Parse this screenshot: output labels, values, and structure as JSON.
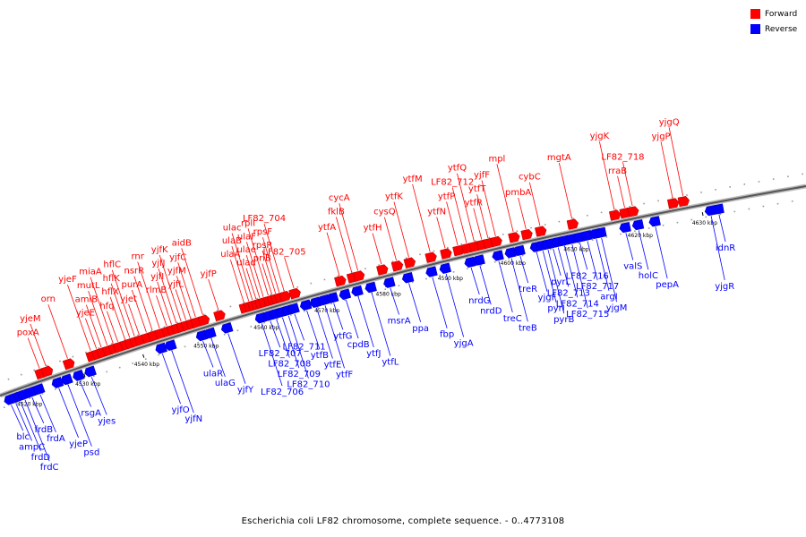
{
  "legend": {
    "forward": {
      "label": "Forward",
      "color": "#ff0000"
    },
    "reverse": {
      "label": "Reverse",
      "color": "#0000ff"
    }
  },
  "caption": "Escherichia coli LF82 chromosome, complete sequence. - 0..4773108",
  "axis": {
    "start_kbp": 4516,
    "end_kbp": 4646,
    "tick_labels": [
      "4520 kbp",
      "4530 kbp",
      "4540 kbp",
      "4550 kbp",
      "4560 kbp",
      "4570 kbp",
      "4580 kbp",
      "4590 kbp",
      "4600 kbp",
      "4610 kbp",
      "4620 kbp",
      "4630 kbp"
    ]
  },
  "forward_genes": [
    {
      "name": "poxA",
      "kbp": 4523.5
    },
    {
      "name": "yjeM",
      "kbp": 4524.6
    },
    {
      "name": "orn",
      "kbp": 4528.3
    },
    {
      "name": "yjeF",
      "kbp": 4532.2
    },
    {
      "name": "yjeE",
      "kbp": 4533.2
    },
    {
      "name": "amiB",
      "kbp": 4534.0
    },
    {
      "name": "mutL",
      "kbp": 4535.0
    },
    {
      "name": "miaA",
      "kbp": 4536.0
    },
    {
      "name": "hfq",
      "kbp": 4536.8
    },
    {
      "name": "hflX",
      "kbp": 4538.0
    },
    {
      "name": "hflK",
      "kbp": 4538.8
    },
    {
      "name": "hflC",
      "kbp": 4539.6
    },
    {
      "name": "yjet",
      "kbp": 4540.4
    },
    {
      "name": "purA",
      "kbp": 4541.6
    },
    {
      "name": "nsrR",
      "kbp": 4542.6
    },
    {
      "name": "rnr",
      "kbp": 4543.8
    },
    {
      "name": "rlmB",
      "kbp": 4545.0
    },
    {
      "name": "yjfI",
      "kbp": 4545.8
    },
    {
      "name": "yjfJ",
      "kbp": 4546.6
    },
    {
      "name": "yjfK",
      "kbp": 4547.4
    },
    {
      "name": "yjfL",
      "kbp": 4548.2
    },
    {
      "name": "yjfM",
      "kbp": 4549.0
    },
    {
      "name": "yjfC",
      "kbp": 4549.8
    },
    {
      "name": "aidB",
      "kbp": 4551.0
    },
    {
      "name": "yjfP",
      "kbp": 4553.6
    },
    {
      "name": "ulaA",
      "kbp": 4557.8
    },
    {
      "name": "ulaB",
      "kbp": 4558.6
    },
    {
      "name": "ulac",
      "kbp": 4559.2
    },
    {
      "name": "ulad",
      "kbp": 4559.8
    },
    {
      "name": "ulae",
      "kbp": 4560.4
    },
    {
      "name": "ulaF",
      "kbp": 4561.0
    },
    {
      "name": "rplI",
      "kbp": 4561.8
    },
    {
      "name": "priB",
      "kbp": 4562.4
    },
    {
      "name": "rpsR",
      "kbp": 4563.0
    },
    {
      "name": "rpsF",
      "kbp": 4563.6
    },
    {
      "name": "LF82_704",
      "kbp": 4564.4
    },
    {
      "name": "LF82_705",
      "kbp": 4566.0
    },
    {
      "name": "ytfA",
      "kbp": 4573.4
    },
    {
      "name": "fklB",
      "kbp": 4575.4
    },
    {
      "name": "cycA",
      "kbp": 4576.4
    },
    {
      "name": "ytfH",
      "kbp": 4580.2
    },
    {
      "name": "cysQ",
      "kbp": 4582.6
    },
    {
      "name": "ytfK",
      "kbp": 4584.6
    },
    {
      "name": "ytfM",
      "kbp": 4588.0
    },
    {
      "name": "ytfN",
      "kbp": 4590.4
    },
    {
      "name": "ytfP",
      "kbp": 4592.4
    },
    {
      "name": "LF82_712",
      "kbp": 4593.8
    },
    {
      "name": "ytfQ",
      "kbp": 4595.0
    },
    {
      "name": "ytfR",
      "kbp": 4596.2
    },
    {
      "name": "ytfT",
      "kbp": 4597.2
    },
    {
      "name": "yjfF",
      "kbp": 4598.4
    },
    {
      "name": "mpl",
      "kbp": 4601.2
    },
    {
      "name": "pmbA",
      "kbp": 4603.2
    },
    {
      "name": "cybC",
      "kbp": 4605.4
    },
    {
      "name": "mgtA",
      "kbp": 4610.4
    },
    {
      "name": "yjgK",
      "kbp": 4617.0
    },
    {
      "name": "rraB",
      "kbp": 4618.6
    },
    {
      "name": "LF82_718",
      "kbp": 4619.8
    },
    {
      "name": "yjgP",
      "kbp": 4626.0
    },
    {
      "name": "yjgQ",
      "kbp": 4627.6
    }
  ],
  "reverse_genes": [
    {
      "name": "blc",
      "kbp": 4517.2
    },
    {
      "name": "ampC",
      "kbp": 4518.0
    },
    {
      "name": "frdD",
      "kbp": 4518.8
    },
    {
      "name": "frdC",
      "kbp": 4519.6
    },
    {
      "name": "frdB",
      "kbp": 4520.8
    },
    {
      "name": "frdA",
      "kbp": 4522.2
    },
    {
      "name": "yjeP",
      "kbp": 4525.4
    },
    {
      "name": "psd",
      "kbp": 4527.0
    },
    {
      "name": "rsgA",
      "kbp": 4529.0
    },
    {
      "name": "yjes",
      "kbp": 4531.0
    },
    {
      "name": "yjfO",
      "kbp": 4543.0
    },
    {
      "name": "yjfN",
      "kbp": 4544.6
    },
    {
      "name": "ulaR",
      "kbp": 4549.8
    },
    {
      "name": "ulaG",
      "kbp": 4551.2
    },
    {
      "name": "yjfY",
      "kbp": 4554.0
    },
    {
      "name": "LF82_706",
      "kbp": 4559.6
    },
    {
      "name": "LF82_707",
      "kbp": 4561.0
    },
    {
      "name": "LF82_708",
      "kbp": 4562.0
    },
    {
      "name": "LF82_709",
      "kbp": 4563.0
    },
    {
      "name": "LF82_710",
      "kbp": 4564.0
    },
    {
      "name": "LF82_711",
      "kbp": 4565.0
    },
    {
      "name": "ytfB",
      "kbp": 4567.0
    },
    {
      "name": "ytfE",
      "kbp": 4568.6
    },
    {
      "name": "ytfF",
      "kbp": 4570.0
    },
    {
      "name": "ytfG",
      "kbp": 4571.4
    },
    {
      "name": "cpdB",
      "kbp": 4573.4
    },
    {
      "name": "ytfJ",
      "kbp": 4575.4
    },
    {
      "name": "ytfL",
      "kbp": 4577.6
    },
    {
      "name": "msrA",
      "kbp": 4580.6
    },
    {
      "name": "ppa",
      "kbp": 4583.6
    },
    {
      "name": "fbp",
      "kbp": 4587.4
    },
    {
      "name": "yjgA",
      "kbp": 4589.6
    },
    {
      "name": "nrdG",
      "kbp": 4593.6
    },
    {
      "name": "nrdD",
      "kbp": 4595.0
    },
    {
      "name": "treC",
      "kbp": 4598.0
    },
    {
      "name": "treB",
      "kbp": 4600.0
    },
    {
      "name": "treR",
      "kbp": 4601.4
    },
    {
      "name": "yjgF",
      "kbp": 4604.0
    },
    {
      "name": "pyrI",
      "kbp": 4605.0
    },
    {
      "name": "pyrB",
      "kbp": 4605.8
    },
    {
      "name": "pyrL",
      "kbp": 4606.6
    },
    {
      "name": "LF82_713",
      "kbp": 4607.4
    },
    {
      "name": "LF82_714",
      "kbp": 4608.4
    },
    {
      "name": "LF82_715",
      "kbp": 4609.6
    },
    {
      "name": "LF82_716",
      "kbp": 4610.8
    },
    {
      "name": "LF82_717",
      "kbp": 4612.0
    },
    {
      "name": "argI",
      "kbp": 4613.4
    },
    {
      "name": "yjgM",
      "kbp": 4614.2
    },
    {
      "name": "valS",
      "kbp": 4618.0
    },
    {
      "name": "holC",
      "kbp": 4620.0
    },
    {
      "name": "pepA",
      "kbp": 4622.6
    },
    {
      "name": "yjgR",
      "kbp": 4631.2
    },
    {
      "name": "idnR",
      "kbp": 4632.4
    }
  ]
}
